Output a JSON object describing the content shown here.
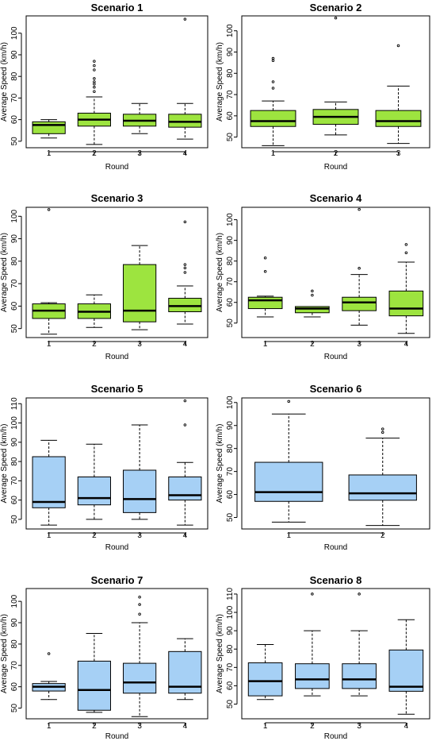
{
  "chart_data": [
    {
      "type": "box",
      "title": "Scenario 1",
      "xlabel": "Round",
      "ylabel": "Average Speed (km/h)",
      "ylim": [
        47,
        108
      ],
      "yticks": [
        50,
        60,
        70,
        80,
        90,
        100
      ],
      "box_color": "#9de43f",
      "categories": [
        "1",
        "2",
        "3",
        "4"
      ],
      "boxes": [
        {
          "whisker_low": 51.5,
          "q1": 53.5,
          "median": 57.5,
          "q3": 59,
          "whisker_high": 60,
          "outliers": []
        },
        {
          "whisker_low": 48.5,
          "q1": 57,
          "median": 60,
          "q3": 63,
          "whisker_high": 70.5,
          "outliers": [
            73,
            75,
            76.5,
            77.5,
            79,
            83,
            85,
            87
          ]
        },
        {
          "whisker_low": 53.5,
          "q1": 57,
          "median": 59.5,
          "q3": 62.5,
          "whisker_high": 67.5,
          "outliers": []
        },
        {
          "whisker_low": 51,
          "q1": 56.5,
          "median": 59,
          "q3": 62.5,
          "whisker_high": 67.5,
          "outliers": [
            106.5
          ]
        }
      ]
    },
    {
      "type": "box",
      "title": "Scenario 2",
      "xlabel": "Round",
      "ylabel": "Average Speed (km/h)",
      "ylim": [
        45,
        107
      ],
      "yticks": [
        50,
        60,
        70,
        80,
        90,
        100
      ],
      "box_color": "#9de43f",
      "categories": [
        "1",
        "2",
        "3"
      ],
      "boxes": [
        {
          "whisker_low": 46,
          "q1": 55,
          "median": 57.5,
          "q3": 62.5,
          "whisker_high": 67,
          "outliers": [
            73,
            76,
            86,
            87
          ]
        },
        {
          "whisker_low": 51,
          "q1": 56,
          "median": 59.5,
          "q3": 63,
          "whisker_high": 66.5,
          "outliers": [
            106
          ]
        },
        {
          "whisker_low": 47,
          "q1": 55,
          "median": 57.5,
          "q3": 62.5,
          "whisker_high": 74,
          "outliers": [
            93
          ]
        }
      ]
    },
    {
      "type": "box",
      "title": "Scenario 3",
      "xlabel": "Round",
      "ylabel": "Average Speed (km/h)",
      "ylim": [
        46,
        104
      ],
      "yticks": [
        50,
        60,
        70,
        80,
        90,
        100
      ],
      "box_color": "#9de43f",
      "categories": [
        "1",
        "2",
        "3",
        "4"
      ],
      "boxes": [
        {
          "whisker_low": 47.5,
          "q1": 54.5,
          "median": 58,
          "q3": 61,
          "whisker_high": 61.5,
          "outliers": [
            103
          ]
        },
        {
          "whisker_low": 50.5,
          "q1": 54.5,
          "median": 57.5,
          "q3": 61,
          "whisker_high": 65,
          "outliers": []
        },
        {
          "whisker_low": 49.5,
          "q1": 53,
          "median": 58,
          "q3": 78.5,
          "whisker_high": 87,
          "outliers": []
        },
        {
          "whisker_low": 52,
          "q1": 57.5,
          "median": 60,
          "q3": 63.5,
          "whisker_high": 69,
          "outliers": [
            75,
            77,
            78.5,
            97.5
          ]
        }
      ]
    },
    {
      "type": "box",
      "title": "Scenario 4",
      "xlabel": "Round",
      "ylabel": "Average Speed (km/h)",
      "ylim": [
        43,
        106
      ],
      "yticks": [
        50,
        60,
        70,
        80,
        90,
        100
      ],
      "box_color": "#9de43f",
      "categories": [
        "1",
        "2",
        "3",
        "4"
      ],
      "boxes": [
        {
          "whisker_low": 53,
          "q1": 57,
          "median": 61,
          "q3": 62.5,
          "whisker_high": 63,
          "outliers": [
            75,
            81.5
          ]
        },
        {
          "whisker_low": 53,
          "q1": 55,
          "median": 57,
          "q3": 58,
          "whisker_high": 58,
          "outliers": [
            63.5,
            65.5
          ]
        },
        {
          "whisker_low": 49,
          "q1": 56,
          "median": 60,
          "q3": 62.5,
          "whisker_high": 73.5,
          "outliers": [
            76.5,
            105
          ]
        },
        {
          "whisker_low": 45,
          "q1": 53.5,
          "median": 57,
          "q3": 65.5,
          "whisker_high": 79.5,
          "outliers": [
            84,
            88
          ]
        }
      ]
    },
    {
      "type": "box",
      "title": "Scenario 5",
      "xlabel": "Round",
      "ylabel": "Average Speed (km/h)",
      "ylim": [
        45,
        113
      ],
      "yticks": [
        50,
        60,
        70,
        80,
        90,
        100,
        110
      ],
      "box_color": "#a6d0f5",
      "categories": [
        "1",
        "2",
        "3",
        "4"
      ],
      "boxes": [
        {
          "whisker_low": 47,
          "q1": 56,
          "median": 59,
          "q3": 82.5,
          "whisker_high": 91,
          "outliers": []
        },
        {
          "whisker_low": 50,
          "q1": 57.5,
          "median": 61,
          "q3": 72,
          "whisker_high": 89,
          "outliers": []
        },
        {
          "whisker_low": 50,
          "q1": 53.5,
          "median": 60.5,
          "q3": 75.5,
          "whisker_high": 99,
          "outliers": []
        },
        {
          "whisker_low": 47,
          "q1": 60,
          "median": 62.5,
          "q3": 72,
          "whisker_high": 79.5,
          "outliers": [
            99,
            111.5
          ]
        }
      ]
    },
    {
      "type": "box",
      "title": "Scenario 6",
      "xlabel": "Round",
      "ylabel": "Average Speed (km/h)",
      "ylim": [
        45,
        102
      ],
      "yticks": [
        50,
        60,
        70,
        80,
        90,
        100
      ],
      "box_color": "#a6d0f5",
      "categories": [
        "1",
        "2"
      ],
      "boxes": [
        {
          "whisker_low": 48,
          "q1": 57,
          "median": 61,
          "q3": 74,
          "whisker_high": 95,
          "outliers": [
            100.5
          ]
        },
        {
          "whisker_low": 46.5,
          "q1": 57.5,
          "median": 60.5,
          "q3": 68.5,
          "whisker_high": 84.5,
          "outliers": [
            87,
            88.5
          ]
        }
      ]
    },
    {
      "type": "box",
      "title": "Scenario 7",
      "xlabel": "Round",
      "ylabel": "Average Speed (km/h)",
      "ylim": [
        45,
        106
      ],
      "yticks": [
        50,
        60,
        70,
        80,
        90,
        100
      ],
      "box_color": "#a6d0f5",
      "categories": [
        "1",
        "2",
        "3",
        "4"
      ],
      "boxes": [
        {
          "whisker_low": 54,
          "q1": 58,
          "median": 60,
          "q3": 61.5,
          "whisker_high": 62.5,
          "outliers": [
            75.5
          ]
        },
        {
          "whisker_low": 48,
          "q1": 49,
          "median": 58.5,
          "q3": 72,
          "whisker_high": 85,
          "outliers": []
        },
        {
          "whisker_low": 46,
          "q1": 57,
          "median": 62,
          "q3": 71,
          "whisker_high": 90,
          "outliers": [
            94,
            98.5,
            102
          ]
        },
        {
          "whisker_low": 54,
          "q1": 57,
          "median": 60,
          "q3": 76.5,
          "whisker_high": 82.5,
          "outliers": []
        }
      ]
    },
    {
      "type": "box",
      "title": "Scenario 8",
      "xlabel": "Round",
      "ylabel": "Average Speed (km/h)",
      "ylim": [
        42,
        113
      ],
      "yticks": [
        50,
        60,
        70,
        80,
        90,
        100,
        110
      ],
      "box_color": "#a6d0f5",
      "categories": [
        "1",
        "2",
        "3",
        "4"
      ],
      "boxes": [
        {
          "whisker_low": 52.5,
          "q1": 54.5,
          "median": 62.5,
          "q3": 72.5,
          "whisker_high": 82.5,
          "outliers": []
        },
        {
          "whisker_low": 54.5,
          "q1": 58.5,
          "median": 63.5,
          "q3": 72,
          "whisker_high": 90,
          "outliers": [
            110
          ]
        },
        {
          "whisker_low": 54.5,
          "q1": 58.5,
          "median": 63.5,
          "q3": 72,
          "whisker_high": 90,
          "outliers": [
            110
          ]
        },
        {
          "whisker_low": 44.5,
          "q1": 57,
          "median": 59.5,
          "q3": 79.5,
          "whisker_high": 96,
          "outliers": []
        }
      ]
    }
  ]
}
